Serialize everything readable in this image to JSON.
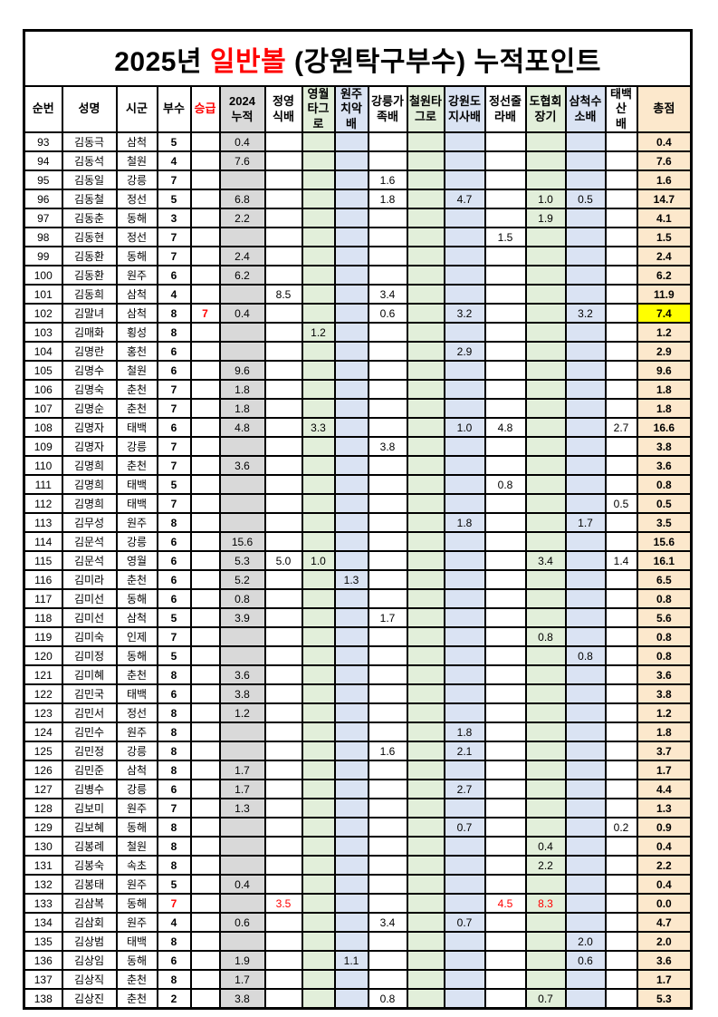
{
  "title": {
    "prefix": "2025년 ",
    "highlight": "일반볼",
    "suffix": " (강원탁구부수) 누적포인트"
  },
  "colors": {
    "highlight_red": "#ff0000",
    "col_2024_bg": "#d9d9d9",
    "col_green_bg": "#e2efda",
    "col_blue_bg": "#dae3f3",
    "total_bg": "#fce8cc",
    "total_highlight_bg": "#ffff00"
  },
  "columns": [
    {
      "key": "num",
      "label": "순번",
      "bg": "white"
    },
    {
      "key": "name",
      "label": "성명",
      "bg": "white"
    },
    {
      "key": "region",
      "label": "시군",
      "bg": "white"
    },
    {
      "key": "busu",
      "label": "부수",
      "bg": "white"
    },
    {
      "key": "promo",
      "label": "승급",
      "bg": "white",
      "header_red": true
    },
    {
      "key": "c2024",
      "label": "2024\n누적",
      "bg": "gray"
    },
    {
      "key": "jy",
      "label": "정영\n식배",
      "bg": "white"
    },
    {
      "key": "yw",
      "label": "영월\n타그로",
      "bg": "green"
    },
    {
      "key": "wj",
      "label": "원주\n치악배",
      "bg": "blue"
    },
    {
      "key": "gn",
      "label": "강릉가\n족배",
      "bg": "white"
    },
    {
      "key": "cw",
      "label": "철원타\n그로",
      "bg": "green"
    },
    {
      "key": "gw",
      "label": "강원도\n지사배",
      "bg": "blue"
    },
    {
      "key": "js",
      "label": "정선줄\n라배",
      "bg": "white"
    },
    {
      "key": "dh",
      "label": "도협회\n장기",
      "bg": "green"
    },
    {
      "key": "sc",
      "label": "삼척수\n소배",
      "bg": "blue"
    },
    {
      "key": "tb",
      "label": "태백산\n배",
      "bg": "white"
    },
    {
      "key": "total",
      "label": "총점",
      "bg": "tan"
    }
  ],
  "rows": [
    {
      "num": "93",
      "name": "김동극",
      "region": "삼척",
      "busu": "5",
      "promo": "",
      "pts": {
        "c2024": "0.4"
      },
      "total": "0.4"
    },
    {
      "num": "94",
      "name": "김동석",
      "region": "철원",
      "busu": "4",
      "promo": "",
      "pts": {
        "c2024": "7.6"
      },
      "total": "7.6"
    },
    {
      "num": "95",
      "name": "김동일",
      "region": "강릉",
      "busu": "7",
      "promo": "",
      "pts": {
        "gn": "1.6"
      },
      "total": "1.6"
    },
    {
      "num": "96",
      "name": "김동철",
      "region": "정선",
      "busu": "5",
      "promo": "",
      "pts": {
        "c2024": "6.8",
        "gn": "1.8",
        "gw": "4.7",
        "dh": "1.0",
        "sc": "0.5"
      },
      "total": "14.7"
    },
    {
      "num": "97",
      "name": "김동춘",
      "region": "동해",
      "busu": "3",
      "promo": "",
      "pts": {
        "c2024": "2.2",
        "dh": "1.9"
      },
      "total": "4.1"
    },
    {
      "num": "98",
      "name": "김동현",
      "region": "정선",
      "busu": "7",
      "promo": "",
      "pts": {
        "js": "1.5"
      },
      "total": "1.5"
    },
    {
      "num": "99",
      "name": "김동환",
      "region": "동해",
      "busu": "7",
      "promo": "",
      "pts": {
        "c2024": "2.4"
      },
      "total": "2.4"
    },
    {
      "num": "100",
      "name": "김동환",
      "region": "원주",
      "busu": "6",
      "promo": "",
      "pts": {
        "c2024": "6.2"
      },
      "total": "6.2"
    },
    {
      "num": "101",
      "name": "김동희",
      "region": "삼척",
      "busu": "4",
      "promo": "",
      "pts": {
        "jy": "8.5",
        "gn": "3.4"
      },
      "total": "11.9"
    },
    {
      "num": "102",
      "name": "김말녀",
      "region": "삼척",
      "busu": "8",
      "promo": "7",
      "promo_red": true,
      "pts": {
        "c2024": "0.4",
        "gn": "0.6",
        "gw": "3.2",
        "sc": "3.2"
      },
      "total": "7.4",
      "total_highlight": true
    },
    {
      "num": "103",
      "name": "김매화",
      "region": "횡성",
      "busu": "8",
      "promo": "",
      "pts": {
        "yw": "1.2"
      },
      "total": "1.2"
    },
    {
      "num": "104",
      "name": "김명란",
      "region": "홍천",
      "busu": "6",
      "promo": "",
      "pts": {
        "gw": "2.9"
      },
      "total": "2.9"
    },
    {
      "num": "105",
      "name": "김명수",
      "region": "철원",
      "busu": "6",
      "promo": "",
      "pts": {
        "c2024": "9.6"
      },
      "total": "9.6"
    },
    {
      "num": "106",
      "name": "김명숙",
      "region": "춘천",
      "busu": "7",
      "promo": "",
      "pts": {
        "c2024": "1.8"
      },
      "total": "1.8"
    },
    {
      "num": "107",
      "name": "김명순",
      "region": "춘천",
      "busu": "7",
      "promo": "",
      "pts": {
        "c2024": "1.8"
      },
      "total": "1.8"
    },
    {
      "num": "108",
      "name": "김명자",
      "region": "태백",
      "busu": "6",
      "promo": "",
      "pts": {
        "c2024": "4.8",
        "yw": "3.3",
        "gw": "1.0",
        "js": "4.8",
        "tb": "2.7"
      },
      "total": "16.6"
    },
    {
      "num": "109",
      "name": "김명자",
      "region": "강릉",
      "busu": "7",
      "promo": "",
      "pts": {
        "gn": "3.8"
      },
      "total": "3.8"
    },
    {
      "num": "110",
      "name": "김명희",
      "region": "춘천",
      "busu": "7",
      "promo": "",
      "pts": {
        "c2024": "3.6"
      },
      "total": "3.6"
    },
    {
      "num": "111",
      "name": "김명희",
      "region": "태백",
      "busu": "5",
      "promo": "",
      "pts": {
        "js": "0.8"
      },
      "total": "0.8"
    },
    {
      "num": "112",
      "name": "김명희",
      "region": "태백",
      "busu": "7",
      "promo": "",
      "pts": {
        "tb": "0.5"
      },
      "total": "0.5"
    },
    {
      "num": "113",
      "name": "김무성",
      "region": "원주",
      "busu": "8",
      "promo": "",
      "pts": {
        "gw": "1.8",
        "sc": "1.7"
      },
      "total": "3.5"
    },
    {
      "num": "114",
      "name": "김문석",
      "region": "강릉",
      "busu": "6",
      "promo": "",
      "pts": {
        "c2024": "15.6"
      },
      "total": "15.6"
    },
    {
      "num": "115",
      "name": "김문석",
      "region": "영월",
      "busu": "6",
      "promo": "",
      "pts": {
        "c2024": "5.3",
        "jy": "5.0",
        "yw": "1.0",
        "dh": "3.4",
        "tb": "1.4"
      },
      "total": "16.1"
    },
    {
      "num": "116",
      "name": "김미라",
      "region": "춘천",
      "busu": "6",
      "promo": "",
      "pts": {
        "c2024": "5.2",
        "wj": "1.3"
      },
      "total": "6.5"
    },
    {
      "num": "117",
      "name": "김미선",
      "region": "동해",
      "busu": "6",
      "promo": "",
      "pts": {
        "c2024": "0.8"
      },
      "total": "0.8"
    },
    {
      "num": "118",
      "name": "김미선",
      "region": "삼척",
      "busu": "5",
      "promo": "",
      "pts": {
        "c2024": "3.9",
        "gn": "1.7"
      },
      "total": "5.6"
    },
    {
      "num": "119",
      "name": "김미숙",
      "region": "인제",
      "busu": "7",
      "promo": "",
      "pts": {
        "dh": "0.8"
      },
      "total": "0.8"
    },
    {
      "num": "120",
      "name": "김미정",
      "region": "동해",
      "busu": "5",
      "promo": "",
      "pts": {
        "sc": "0.8"
      },
      "total": "0.8"
    },
    {
      "num": "121",
      "name": "김미혜",
      "region": "춘천",
      "busu": "8",
      "promo": "",
      "pts": {
        "c2024": "3.6"
      },
      "total": "3.6"
    },
    {
      "num": "122",
      "name": "김민국",
      "region": "태백",
      "busu": "6",
      "promo": "",
      "pts": {
        "c2024": "3.8"
      },
      "total": "3.8"
    },
    {
      "num": "123",
      "name": "김민서",
      "region": "정선",
      "busu": "8",
      "promo": "",
      "pts": {
        "c2024": "1.2"
      },
      "total": "1.2"
    },
    {
      "num": "124",
      "name": "김민수",
      "region": "원주",
      "busu": "8",
      "promo": "",
      "pts": {
        "gw": "1.8"
      },
      "total": "1.8"
    },
    {
      "num": "125",
      "name": "김민정",
      "region": "강릉",
      "busu": "8",
      "promo": "",
      "pts": {
        "gn": "1.6",
        "gw": "2.1"
      },
      "total": "3.7"
    },
    {
      "num": "126",
      "name": "김민준",
      "region": "삼척",
      "busu": "8",
      "promo": "",
      "pts": {
        "c2024": "1.7"
      },
      "total": "1.7"
    },
    {
      "num": "127",
      "name": "김병수",
      "region": "강릉",
      "busu": "6",
      "promo": "",
      "pts": {
        "c2024": "1.7",
        "gw": "2.7"
      },
      "total": "4.4"
    },
    {
      "num": "128",
      "name": "김보미",
      "region": "원주",
      "busu": "7",
      "promo": "",
      "pts": {
        "c2024": "1.3"
      },
      "total": "1.3"
    },
    {
      "num": "129",
      "name": "김보혜",
      "region": "동해",
      "busu": "8",
      "promo": "",
      "pts": {
        "gw": "0.7",
        "tb": "0.2"
      },
      "total": "0.9"
    },
    {
      "num": "130",
      "name": "김봉례",
      "region": "철원",
      "busu": "8",
      "promo": "",
      "pts": {
        "dh": "0.4"
      },
      "total": "0.4"
    },
    {
      "num": "131",
      "name": "김봉숙",
      "region": "속초",
      "busu": "8",
      "promo": "",
      "pts": {
        "dh": "2.2"
      },
      "total": "2.2"
    },
    {
      "num": "132",
      "name": "김봉태",
      "region": "원주",
      "busu": "5",
      "promo": "",
      "pts": {
        "c2024": "0.4"
      },
      "total": "0.4"
    },
    {
      "num": "133",
      "name": "김삼복",
      "region": "동해",
      "busu": "7",
      "busu_red": true,
      "promo": "",
      "pts": {
        "jy": "3.5",
        "js": "4.5",
        "dh": "8.3"
      },
      "red": [
        "jy",
        "js",
        "dh"
      ],
      "total": "0.0"
    },
    {
      "num": "134",
      "name": "김삼회",
      "region": "원주",
      "busu": "4",
      "promo": "",
      "pts": {
        "c2024": "0.6",
        "gn": "3.4",
        "gw": "0.7"
      },
      "total": "4.7"
    },
    {
      "num": "135",
      "name": "김상범",
      "region": "태백",
      "busu": "8",
      "promo": "",
      "pts": {
        "sc": "2.0"
      },
      "total": "2.0"
    },
    {
      "num": "136",
      "name": "김상임",
      "region": "동해",
      "busu": "6",
      "promo": "",
      "pts": {
        "c2024": "1.9",
        "wj": "1.1",
        "sc": "0.6"
      },
      "total": "3.6"
    },
    {
      "num": "137",
      "name": "김상직",
      "region": "춘천",
      "busu": "8",
      "promo": "",
      "pts": {
        "c2024": "1.7"
      },
      "total": "1.7"
    },
    {
      "num": "138",
      "name": "김상진",
      "region": "춘천",
      "busu": "2",
      "promo": "",
      "pts": {
        "c2024": "3.8",
        "gn": "0.8",
        "dh": "0.7"
      },
      "total": "5.3"
    }
  ]
}
